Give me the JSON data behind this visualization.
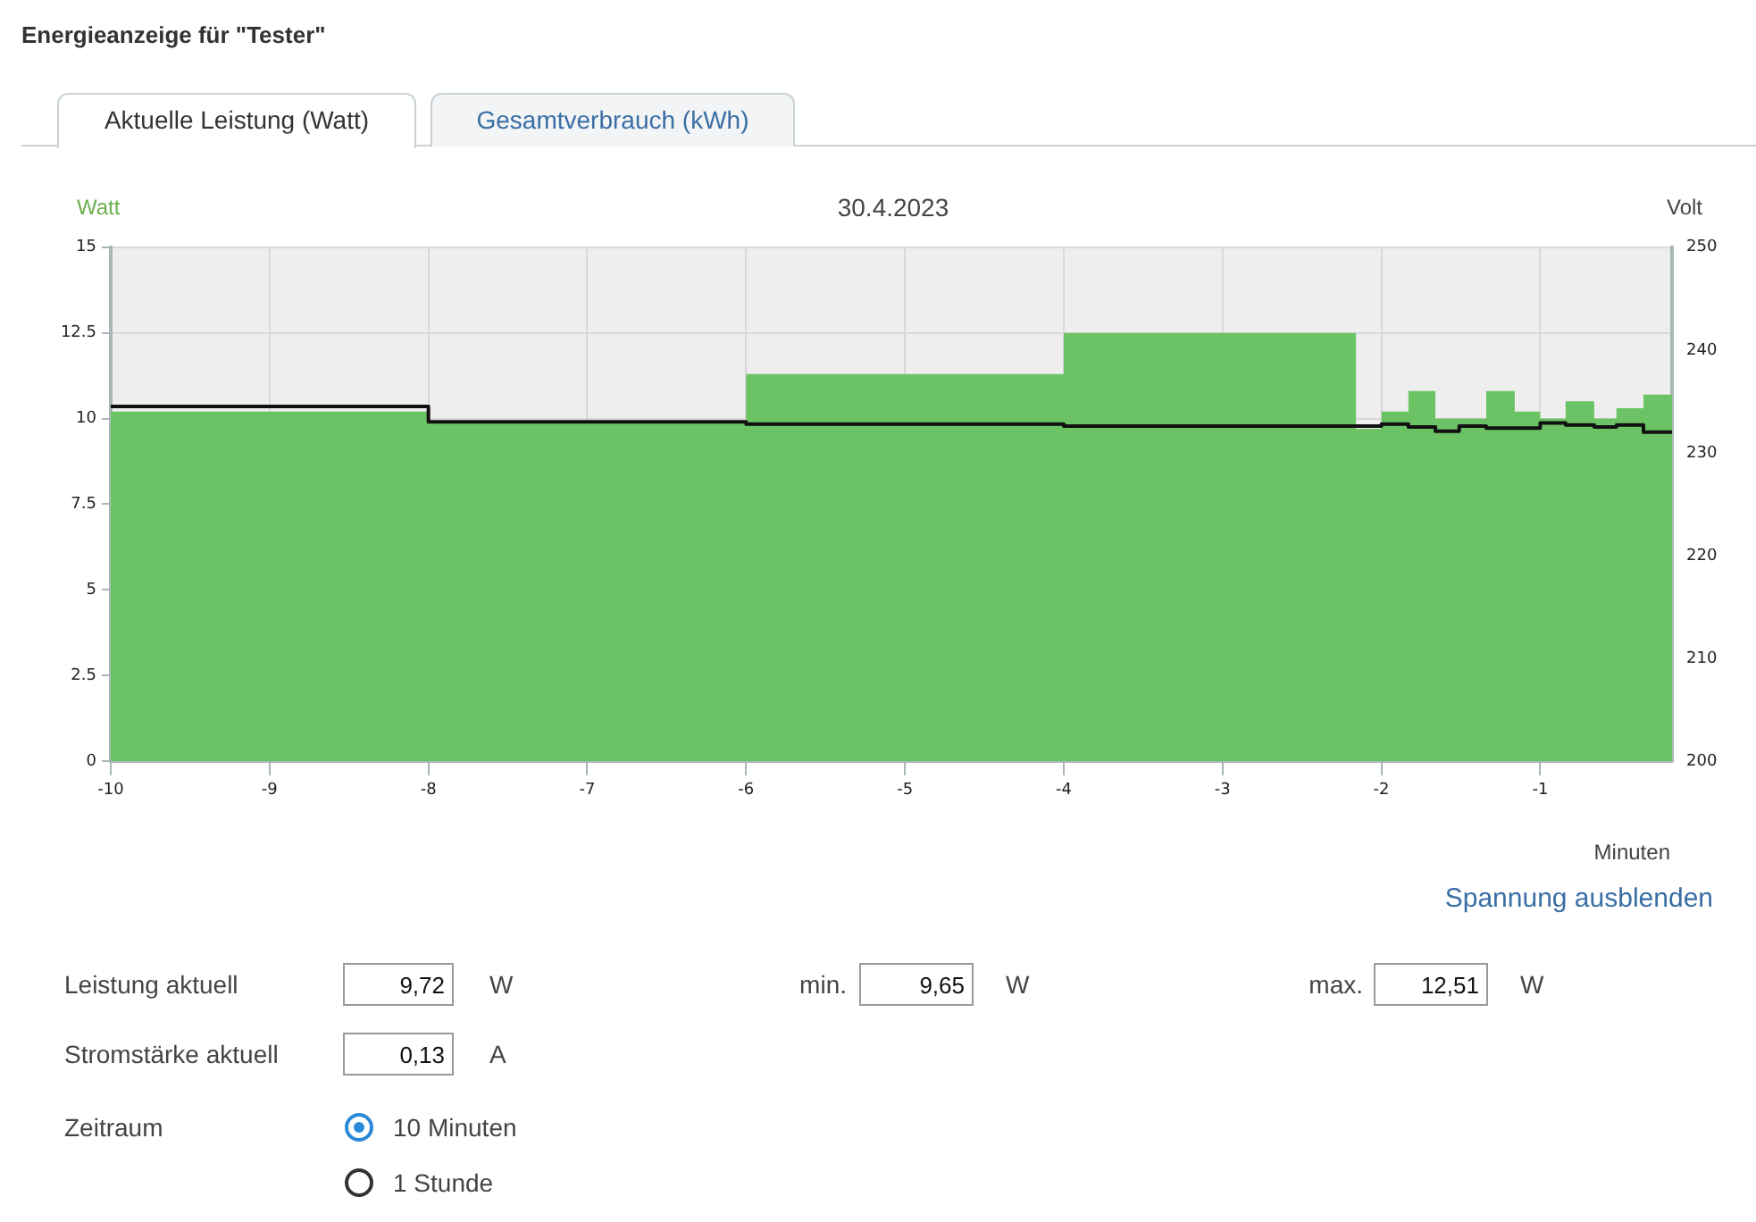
{
  "chart_data": {
    "type": "step",
    "title": "Energieanzeige für \"Tester\"",
    "subtitle": "30.4.2023",
    "xlabel": "Minuten",
    "ylabel": "Watt",
    "y2label": "Volt",
    "series": [
      {
        "type": "area",
        "color": "#6cc365",
        "x": [
          -10,
          -8,
          -6,
          -4,
          -2.16,
          -2.0,
          -1.83,
          -1.66,
          -1.51,
          -1.34,
          -1.16,
          -1.0,
          -0.84,
          -0.66,
          -0.52,
          -0.35,
          -0.17
        ],
        "values": [
          10.2,
          9.9,
          11.3,
          12.5,
          9.7,
          10.2,
          10.8,
          10.0,
          10.0,
          10.8,
          10.2,
          10.0,
          10.5,
          10.0,
          10.3,
          10.7,
          10.7
        ]
      },
      {
        "axis": "y2",
        "color": "#111111",
        "x": [
          -10,
          -8,
          -6,
          -4,
          -2.0,
          -1.83,
          -1.66,
          -1.51,
          -1.34,
          -1.16,
          -1.0,
          -0.84,
          -0.66,
          -0.52,
          -0.35,
          -0.17
        ],
        "values": [
          234.5,
          233.0,
          232.8,
          232.6,
          232.8,
          232.5,
          232.1,
          232.6,
          232.4,
          232.4,
          232.9,
          232.7,
          232.5,
          232.7,
          232.0,
          232.0
        ]
      }
    ],
    "xlim": [
      -10,
      -0.17
    ],
    "xticks": [
      -10,
      -9,
      -8,
      -7,
      -6,
      -5,
      -4,
      -3,
      -2,
      -1
    ],
    "ylim": [
      0,
      15
    ],
    "yticks": [
      0,
      2.5,
      5,
      7.5,
      10,
      12.5,
      15
    ],
    "y2lim": [
      200,
      250
    ],
    "y2ticks": [
      200,
      210,
      220,
      230,
      240,
      250
    ],
    "grid": true,
    "legend": false,
    "marker": "none",
    "annotations": [
      "Aktuelle Leistung (Watt)",
      "Gesamtverbrauch (kWh)",
      "Spannung ausblenden",
      "Leistung aktuell",
      "9,72",
      "W",
      "min.",
      "9,65",
      "W",
      "max.",
      "12,51",
      "W",
      "Stromstärke aktuell",
      "0,13",
      "A",
      "Zeitraum",
      "10 Minuten",
      "1 Stunde"
    ]
  }
}
